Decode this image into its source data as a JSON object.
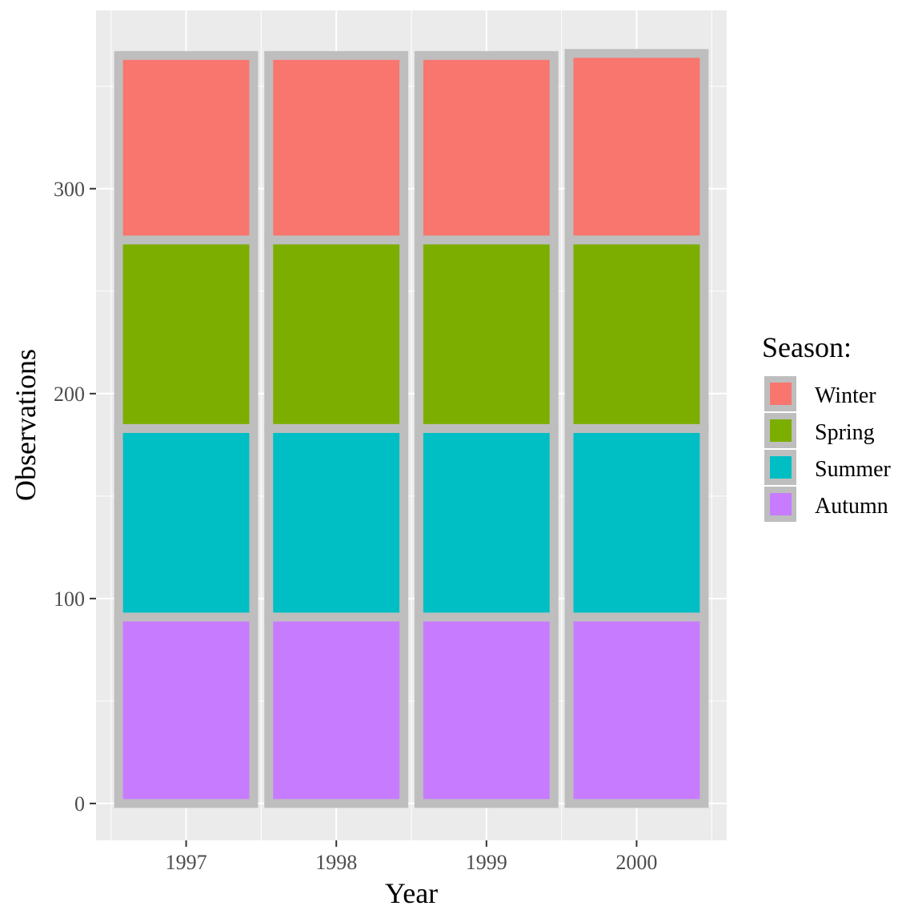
{
  "chart_data": {
    "type": "bar",
    "stacked": true,
    "categories": [
      "1997",
      "1998",
      "1999",
      "2000"
    ],
    "series": [
      {
        "name": "Autumn",
        "values": [
          91,
          91,
          91,
          91
        ],
        "color": "#C77CFF"
      },
      {
        "name": "Summer",
        "values": [
          92,
          92,
          92,
          92
        ],
        "color": "#00BFC4"
      },
      {
        "name": "Spring",
        "values": [
          92,
          92,
          92,
          92
        ],
        "color": "#7CAE00"
      },
      {
        "name": "Winter",
        "values": [
          90,
          90,
          90,
          91
        ],
        "color": "#F8766D"
      }
    ],
    "xlabel": "Year",
    "ylabel": "Observations",
    "ylim": [
      -18,
      387
    ],
    "yticks": [
      0,
      100,
      200,
      300
    ],
    "grid": true,
    "panel_background": "#EBEBEB",
    "bar_outline_color": "#BEBEBE",
    "legend": {
      "title": "Season:",
      "position": "right",
      "order": [
        "Winter",
        "Spring",
        "Summer",
        "Autumn"
      ]
    }
  }
}
